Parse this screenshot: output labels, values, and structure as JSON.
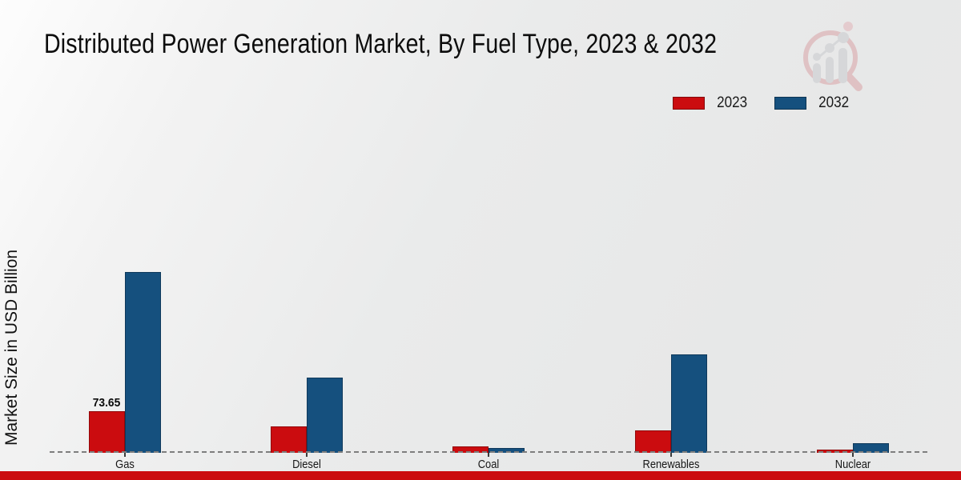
{
  "chart_data": {
    "type": "bar",
    "title": "Distributed Power Generation Market, By Fuel Type, 2023 & 2032",
    "ylabel": "Market Size in USD Billion",
    "xlabel": "",
    "categories": [
      "Gas",
      "Diesel",
      "Coal",
      "Renewables",
      "Nuclear"
    ],
    "series": [
      {
        "name": "2023",
        "color": "#cb0c0f",
        "values": [
          73.65,
          46.5,
          12.0,
          39.5,
          5.6
        ],
        "value_labels": [
          "73.65",
          "",
          "",
          "",
          ""
        ]
      },
      {
        "name": "2032",
        "color": "#15507e",
        "values": [
          320.0,
          133.0,
          7.8,
          174.0,
          17.0
        ],
        "value_labels": [
          "",
          "",
          "",
          "",
          ""
        ]
      }
    ],
    "ylim": [
      0,
      340
    ],
    "grid": false,
    "baseline_style": "dashed",
    "legend_position": "top-right"
  },
  "branding": {
    "logo_icon": "magnifier-bar-chart-watermark",
    "accent_red": "#cb0c0f",
    "accent_blue": "#15507e",
    "bottom_bar_color": "#cb0c0f"
  }
}
